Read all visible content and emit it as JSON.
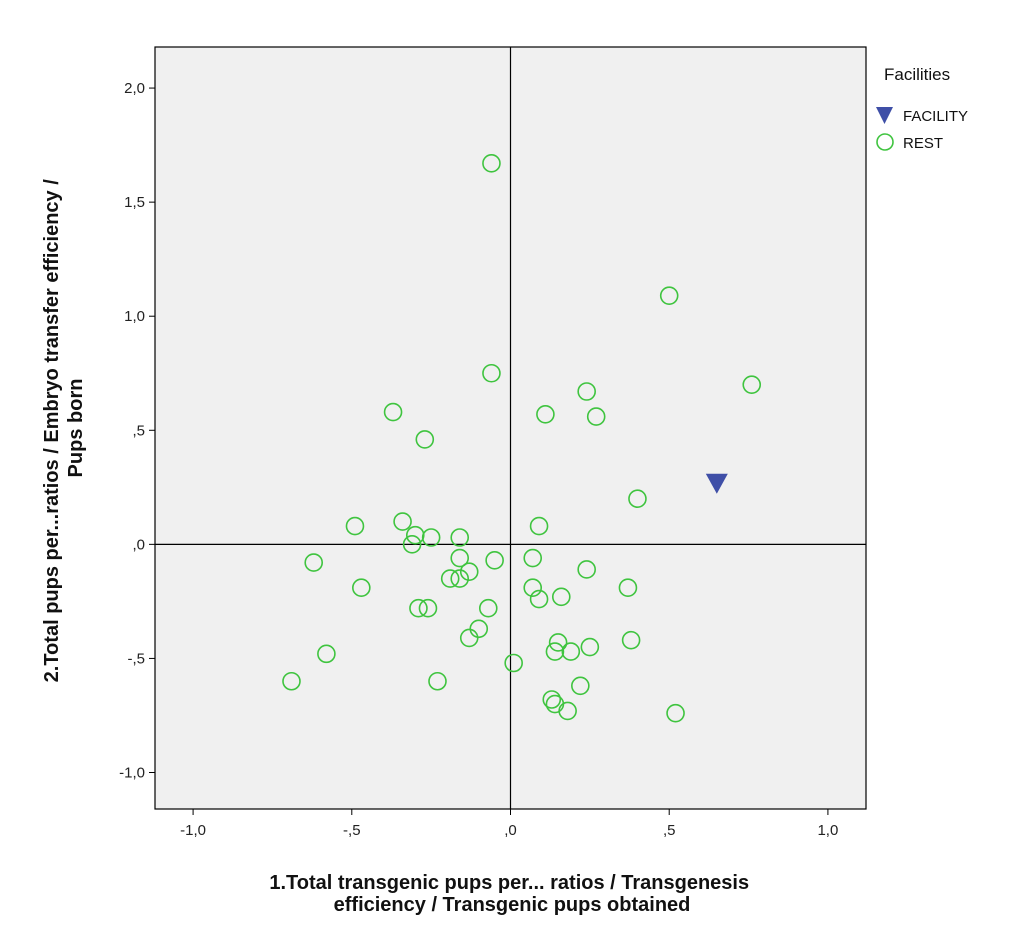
{
  "chart_data": {
    "type": "scatter",
    "xlabel_lines": [
      "1.Total transgenic pups per... ratios / Transgenesis",
      "efficiency / Transgenic pups obtained"
    ],
    "ylabel_lines": [
      "2.Total pups per...ratios / Embryo transfer efficiency /",
      "Pups born"
    ],
    "xlim": [
      -1.12,
      1.12
    ],
    "ylim": [
      -1.16,
      2.18
    ],
    "xticks": [
      {
        "value": -1.0,
        "label": "-1,0"
      },
      {
        "value": -0.5,
        "label": "-,5"
      },
      {
        "value": 0.0,
        "label": ",0"
      },
      {
        "value": 0.5,
        "label": ",5"
      },
      {
        "value": 1.0,
        "label": "1,0"
      }
    ],
    "yticks": [
      {
        "value": -1.0,
        "label": "-1,0"
      },
      {
        "value": -0.5,
        "label": "-,5"
      },
      {
        "value": 0.0,
        "label": ",0"
      },
      {
        "value": 0.5,
        "label": ",5"
      },
      {
        "value": 1.0,
        "label": "1,0"
      },
      {
        "value": 1.5,
        "label": "1,5"
      },
      {
        "value": 2.0,
        "label": "2,0"
      }
    ],
    "reference_lines": {
      "x": 0,
      "y": 0
    },
    "grid": false,
    "plot_background": "#f0f0f0",
    "legend": {
      "title": "Facilities",
      "position": "right"
    },
    "series": [
      {
        "name": "FACILITY",
        "marker": "triangle-down",
        "color": "#3f4fa7",
        "points": [
          [
            0.65,
            0.27
          ]
        ]
      },
      {
        "name": "REST",
        "marker": "circle-open",
        "color": "#3fc43f",
        "points": [
          [
            -0.06,
            1.67
          ],
          [
            0.5,
            1.09
          ],
          [
            -0.06,
            0.75
          ],
          [
            0.76,
            0.7
          ],
          [
            0.24,
            0.67
          ],
          [
            -0.37,
            0.58
          ],
          [
            0.11,
            0.57
          ],
          [
            0.27,
            0.56
          ],
          [
            -0.27,
            0.46
          ],
          [
            0.4,
            0.2
          ],
          [
            -0.49,
            0.08
          ],
          [
            -0.34,
            0.1
          ],
          [
            0.09,
            0.08
          ],
          [
            -0.31,
            0.0
          ],
          [
            -0.3,
            0.04
          ],
          [
            -0.25,
            0.03
          ],
          [
            -0.16,
            0.03
          ],
          [
            -0.16,
            -0.06
          ],
          [
            -0.05,
            -0.07
          ],
          [
            0.07,
            -0.06
          ],
          [
            -0.62,
            -0.08
          ],
          [
            -0.13,
            -0.12
          ],
          [
            -0.19,
            -0.15
          ],
          [
            -0.16,
            -0.15
          ],
          [
            -0.47,
            -0.19
          ],
          [
            0.24,
            -0.11
          ],
          [
            0.07,
            -0.19
          ],
          [
            0.37,
            -0.19
          ],
          [
            0.09,
            -0.24
          ],
          [
            0.16,
            -0.23
          ],
          [
            -0.29,
            -0.28
          ],
          [
            -0.26,
            -0.28
          ],
          [
            -0.07,
            -0.28
          ],
          [
            -0.1,
            -0.37
          ],
          [
            -0.13,
            -0.41
          ],
          [
            0.15,
            -0.43
          ],
          [
            0.38,
            -0.42
          ],
          [
            0.14,
            -0.47
          ],
          [
            0.19,
            -0.47
          ],
          [
            0.25,
            -0.45
          ],
          [
            -0.58,
            -0.48
          ],
          [
            0.01,
            -0.52
          ],
          [
            -0.69,
            -0.6
          ],
          [
            -0.23,
            -0.6
          ],
          [
            0.22,
            -0.62
          ],
          [
            0.13,
            -0.68
          ],
          [
            0.14,
            -0.7
          ],
          [
            0.18,
            -0.73
          ],
          [
            0.52,
            -0.74
          ]
        ]
      }
    ]
  }
}
